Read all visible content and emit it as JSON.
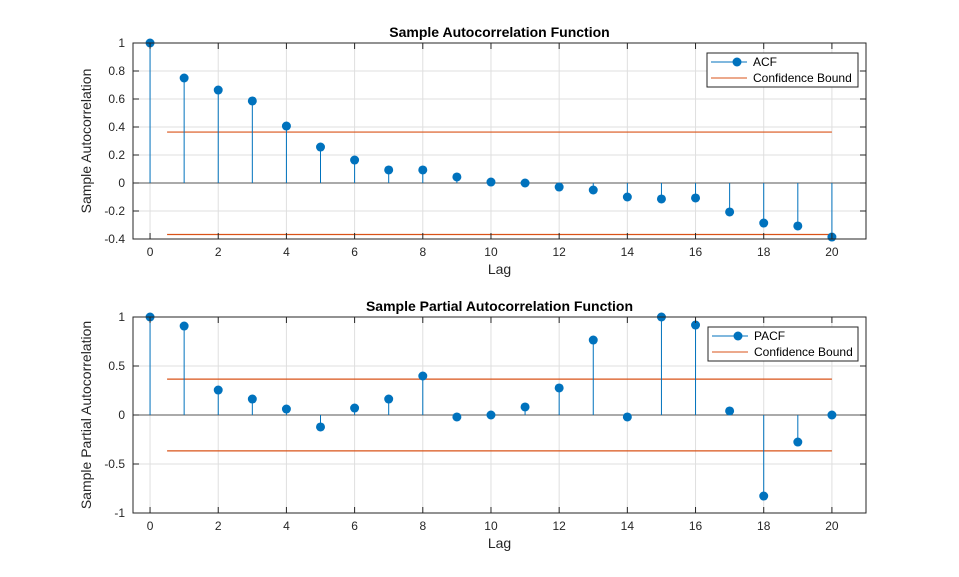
{
  "chart_data": [
    {
      "type": "stem",
      "title": "Sample Autocorrelation Function",
      "xlabel": "Lag",
      "ylabel": "Sample Autocorrelation",
      "xlim": [
        -0.5,
        21
      ],
      "ylim": [
        -0.4,
        1
      ],
      "xticks": [
        0,
        2,
        4,
        6,
        8,
        10,
        12,
        14,
        16,
        18,
        20
      ],
      "yticks": [
        -0.4,
        -0.2,
        0,
        0.2,
        0.4,
        0.6,
        0.8,
        1
      ],
      "ytick_labels": [
        "-0.4",
        "-0.2",
        "0",
        "0.2",
        "0.4",
        "0.6",
        "0.8",
        "1"
      ],
      "grid": true,
      "legend_position": "top-right",
      "x": [
        0,
        1,
        2,
        3,
        4,
        5,
        6,
        7,
        8,
        9,
        10,
        11,
        12,
        13,
        14,
        15,
        16,
        17,
        18,
        19,
        20
      ],
      "series": [
        {
          "name": "ACF",
          "color": "#0072BD",
          "values": [
            1,
            0.75,
            0.664,
            0.586,
            0.407,
            0.257,
            0.164,
            0.093,
            0.093,
            0.043,
            0.007,
            0,
            -0.029,
            -0.05,
            -0.1,
            -0.114,
            -0.107,
            -0.207,
            -0.286,
            -0.307,
            -0.386
          ]
        },
        {
          "name": "Confidence Bound",
          "color": "#D95319",
          "bounds": [
            0.364,
            -0.368
          ],
          "x_range": [
            0.5,
            20
          ]
        }
      ]
    },
    {
      "type": "stem",
      "title": "Sample Partial Autocorrelation Function",
      "xlabel": "Lag",
      "ylabel": "Sample Partial Autocorrelation",
      "xlim": [
        -0.5,
        21
      ],
      "ylim": [
        -1,
        1
      ],
      "xticks": [
        0,
        2,
        4,
        6,
        8,
        10,
        12,
        14,
        16,
        18,
        20
      ],
      "yticks": [
        -1,
        -0.5,
        0,
        0.5,
        1
      ],
      "ytick_labels": [
        "-1",
        "-0.5",
        "0",
        "0.5",
        "1"
      ],
      "grid": true,
      "legend_position": "top-right",
      "x": [
        0,
        1,
        2,
        3,
        4,
        5,
        6,
        7,
        8,
        9,
        10,
        11,
        12,
        13,
        14,
        15,
        16,
        17,
        18,
        19,
        20
      ],
      "series": [
        {
          "name": "PACF",
          "color": "#0072BD",
          "values": [
            1,
            0.908,
            0.255,
            0.163,
            0.061,
            -0.122,
            0.071,
            0.163,
            0.398,
            -0.02,
            0,
            0.082,
            0.276,
            0.765,
            -0.02,
            1,
            0.918,
            0.041,
            -0.827,
            -0.276,
            0
          ]
        },
        {
          "name": "Confidence Bound",
          "color": "#D95319",
          "bounds": [
            0.366,
            -0.366
          ],
          "x_range": [
            0.5,
            20
          ]
        }
      ]
    }
  ]
}
